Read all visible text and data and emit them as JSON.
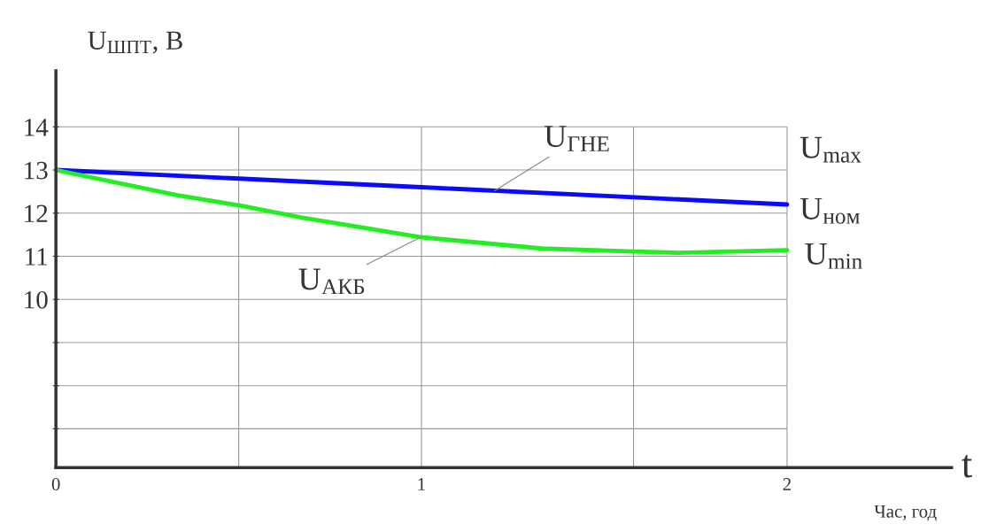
{
  "chart_data": {
    "type": "line",
    "xlabel": "t",
    "ylabel": "U$_{ШПТ}$, В",
    "xlim": [
      0,
      2.45
    ],
    "ylim": [
      6.1,
      15.3
    ],
    "xticks": [
      0,
      {
        "value": 0.5,
        "label": null
      },
      1,
      {
        "value": 1.58,
        "label": null
      },
      2
    ],
    "yticks": [
      {
        "value": 7,
        "label": null
      },
      {
        "value": 8,
        "label": null
      },
      {
        "value": 9,
        "label": null
      },
      10,
      11,
      12,
      13,
      14
    ],
    "grid": true,
    "series": [
      {
        "color": "#0a0aff",
        "x": [
          0,
          1,
          2
        ],
        "values": [
          13,
          12.6,
          12.2
        ]
      },
      {
        "color": "#22ee22",
        "x": [
          0,
          0.33,
          0.5,
          0.67,
          1,
          1.33,
          1.58,
          1.7,
          2
        ],
        "values": [
          13,
          12.42,
          12.18,
          11.9,
          11.44,
          11.18,
          11.11,
          11.08,
          11.14
        ]
      }
    ],
    "annotations": [
      {
        "text": "U$_{ГНЕ}$",
        "x": 1.2,
        "y": 12.52
      },
      {
        "text": "U$_{АКБ}$",
        "x": 1.0,
        "y": 11.45
      },
      "U$_{max}$",
      "U$_{ном}$",
      "U$_{min}$",
      "Час, год"
    ]
  }
}
